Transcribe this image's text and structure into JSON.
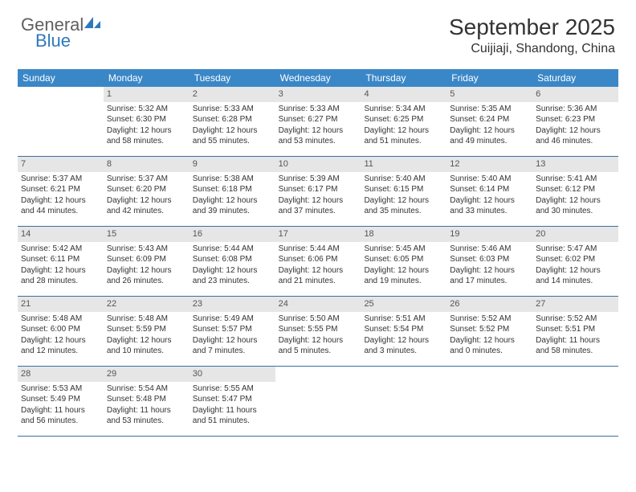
{
  "logo": {
    "general": "General",
    "blue": "Blue",
    "sail_color": "#2f78bd",
    "text_color_gray": "#5f6062"
  },
  "header": {
    "month_title": "September 2025",
    "location": "Cuijiaji, Shandong, China"
  },
  "colors": {
    "header_bar": "#3a87c7",
    "header_text": "#ffffff",
    "daynum_bg": "#e6e6e6",
    "daynum_text": "#555555",
    "body_text": "#333333",
    "divider": "#3a6fa0",
    "background": "#ffffff"
  },
  "weekdays": [
    "Sunday",
    "Monday",
    "Tuesday",
    "Wednesday",
    "Thursday",
    "Friday",
    "Saturday"
  ],
  "weeks": [
    [
      {
        "n": "",
        "sr": "",
        "ss": "",
        "dl": ""
      },
      {
        "n": "1",
        "sr": "Sunrise: 5:32 AM",
        "ss": "Sunset: 6:30 PM",
        "dl": "Daylight: 12 hours and 58 minutes."
      },
      {
        "n": "2",
        "sr": "Sunrise: 5:33 AM",
        "ss": "Sunset: 6:28 PM",
        "dl": "Daylight: 12 hours and 55 minutes."
      },
      {
        "n": "3",
        "sr": "Sunrise: 5:33 AM",
        "ss": "Sunset: 6:27 PM",
        "dl": "Daylight: 12 hours and 53 minutes."
      },
      {
        "n": "4",
        "sr": "Sunrise: 5:34 AM",
        "ss": "Sunset: 6:25 PM",
        "dl": "Daylight: 12 hours and 51 minutes."
      },
      {
        "n": "5",
        "sr": "Sunrise: 5:35 AM",
        "ss": "Sunset: 6:24 PM",
        "dl": "Daylight: 12 hours and 49 minutes."
      },
      {
        "n": "6",
        "sr": "Sunrise: 5:36 AM",
        "ss": "Sunset: 6:23 PM",
        "dl": "Daylight: 12 hours and 46 minutes."
      }
    ],
    [
      {
        "n": "7",
        "sr": "Sunrise: 5:37 AM",
        "ss": "Sunset: 6:21 PM",
        "dl": "Daylight: 12 hours and 44 minutes."
      },
      {
        "n": "8",
        "sr": "Sunrise: 5:37 AM",
        "ss": "Sunset: 6:20 PM",
        "dl": "Daylight: 12 hours and 42 minutes."
      },
      {
        "n": "9",
        "sr": "Sunrise: 5:38 AM",
        "ss": "Sunset: 6:18 PM",
        "dl": "Daylight: 12 hours and 39 minutes."
      },
      {
        "n": "10",
        "sr": "Sunrise: 5:39 AM",
        "ss": "Sunset: 6:17 PM",
        "dl": "Daylight: 12 hours and 37 minutes."
      },
      {
        "n": "11",
        "sr": "Sunrise: 5:40 AM",
        "ss": "Sunset: 6:15 PM",
        "dl": "Daylight: 12 hours and 35 minutes."
      },
      {
        "n": "12",
        "sr": "Sunrise: 5:40 AM",
        "ss": "Sunset: 6:14 PM",
        "dl": "Daylight: 12 hours and 33 minutes."
      },
      {
        "n": "13",
        "sr": "Sunrise: 5:41 AM",
        "ss": "Sunset: 6:12 PM",
        "dl": "Daylight: 12 hours and 30 minutes."
      }
    ],
    [
      {
        "n": "14",
        "sr": "Sunrise: 5:42 AM",
        "ss": "Sunset: 6:11 PM",
        "dl": "Daylight: 12 hours and 28 minutes."
      },
      {
        "n": "15",
        "sr": "Sunrise: 5:43 AM",
        "ss": "Sunset: 6:09 PM",
        "dl": "Daylight: 12 hours and 26 minutes."
      },
      {
        "n": "16",
        "sr": "Sunrise: 5:44 AM",
        "ss": "Sunset: 6:08 PM",
        "dl": "Daylight: 12 hours and 23 minutes."
      },
      {
        "n": "17",
        "sr": "Sunrise: 5:44 AM",
        "ss": "Sunset: 6:06 PM",
        "dl": "Daylight: 12 hours and 21 minutes."
      },
      {
        "n": "18",
        "sr": "Sunrise: 5:45 AM",
        "ss": "Sunset: 6:05 PM",
        "dl": "Daylight: 12 hours and 19 minutes."
      },
      {
        "n": "19",
        "sr": "Sunrise: 5:46 AM",
        "ss": "Sunset: 6:03 PM",
        "dl": "Daylight: 12 hours and 17 minutes."
      },
      {
        "n": "20",
        "sr": "Sunrise: 5:47 AM",
        "ss": "Sunset: 6:02 PM",
        "dl": "Daylight: 12 hours and 14 minutes."
      }
    ],
    [
      {
        "n": "21",
        "sr": "Sunrise: 5:48 AM",
        "ss": "Sunset: 6:00 PM",
        "dl": "Daylight: 12 hours and 12 minutes."
      },
      {
        "n": "22",
        "sr": "Sunrise: 5:48 AM",
        "ss": "Sunset: 5:59 PM",
        "dl": "Daylight: 12 hours and 10 minutes."
      },
      {
        "n": "23",
        "sr": "Sunrise: 5:49 AM",
        "ss": "Sunset: 5:57 PM",
        "dl": "Daylight: 12 hours and 7 minutes."
      },
      {
        "n": "24",
        "sr": "Sunrise: 5:50 AM",
        "ss": "Sunset: 5:55 PM",
        "dl": "Daylight: 12 hours and 5 minutes."
      },
      {
        "n": "25",
        "sr": "Sunrise: 5:51 AM",
        "ss": "Sunset: 5:54 PM",
        "dl": "Daylight: 12 hours and 3 minutes."
      },
      {
        "n": "26",
        "sr": "Sunrise: 5:52 AM",
        "ss": "Sunset: 5:52 PM",
        "dl": "Daylight: 12 hours and 0 minutes."
      },
      {
        "n": "27",
        "sr": "Sunrise: 5:52 AM",
        "ss": "Sunset: 5:51 PM",
        "dl": "Daylight: 11 hours and 58 minutes."
      }
    ],
    [
      {
        "n": "28",
        "sr": "Sunrise: 5:53 AM",
        "ss": "Sunset: 5:49 PM",
        "dl": "Daylight: 11 hours and 56 minutes."
      },
      {
        "n": "29",
        "sr": "Sunrise: 5:54 AM",
        "ss": "Sunset: 5:48 PM",
        "dl": "Daylight: 11 hours and 53 minutes."
      },
      {
        "n": "30",
        "sr": "Sunrise: 5:55 AM",
        "ss": "Sunset: 5:47 PM",
        "dl": "Daylight: 11 hours and 51 minutes."
      },
      {
        "n": "",
        "sr": "",
        "ss": "",
        "dl": ""
      },
      {
        "n": "",
        "sr": "",
        "ss": "",
        "dl": ""
      },
      {
        "n": "",
        "sr": "",
        "ss": "",
        "dl": ""
      },
      {
        "n": "",
        "sr": "",
        "ss": "",
        "dl": ""
      }
    ]
  ]
}
